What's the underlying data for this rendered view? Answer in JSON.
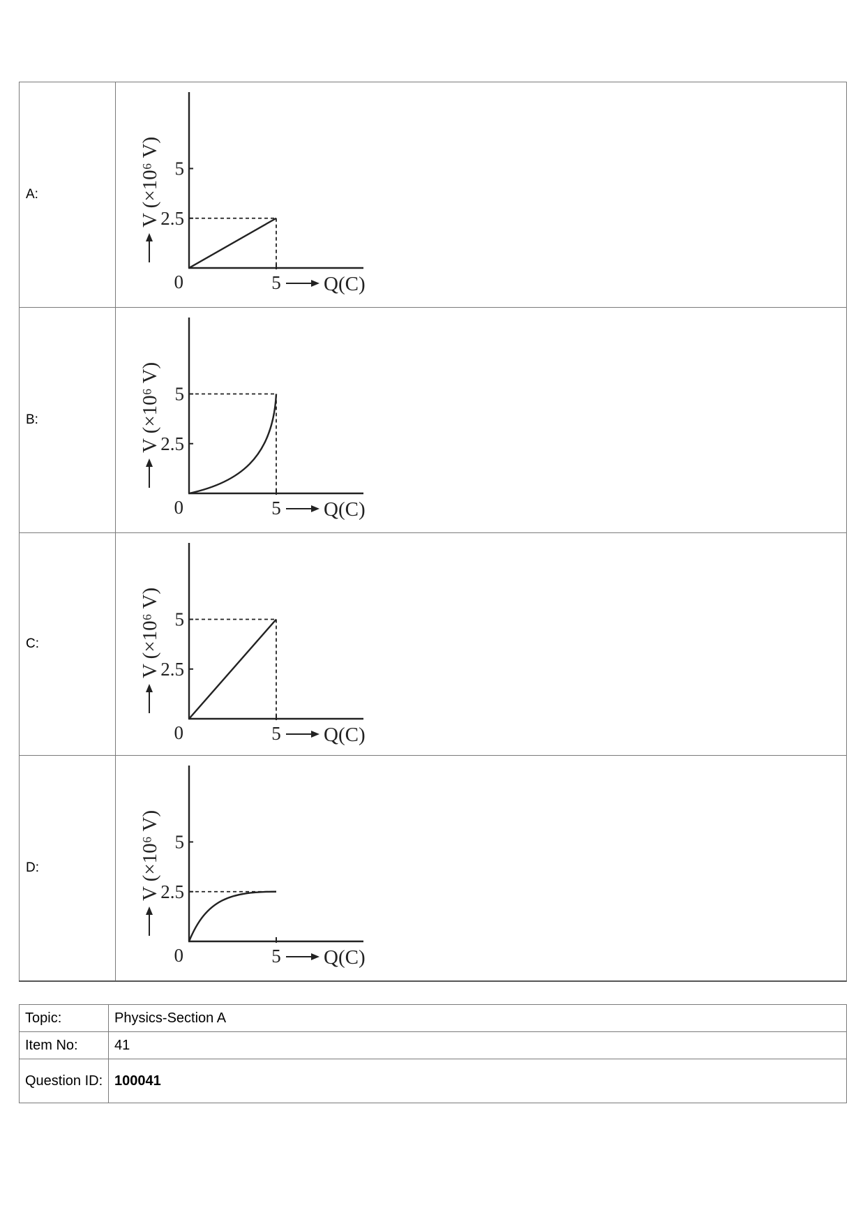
{
  "options": [
    {
      "label": "A:",
      "chart_data": {
        "type": "line",
        "curve": "linear",
        "xlabel": "Q(C)",
        "ylabel": "V (×10⁶ V)",
        "x_ticks": [
          "0",
          "5"
        ],
        "y_ticks": [
          "2.5",
          "5"
        ],
        "points": [
          [
            0,
            0
          ],
          [
            5,
            2.5
          ]
        ],
        "guide_lines": [
          {
            "x": 5,
            "y": 2.5
          }
        ]
      }
    },
    {
      "label": "B:",
      "chart_data": {
        "type": "line",
        "curve": "concave-up",
        "xlabel": "Q(C)",
        "ylabel": "V (×10⁶ V)",
        "x_ticks": [
          "0",
          "5"
        ],
        "y_ticks": [
          "2.5",
          "5"
        ],
        "points": [
          [
            0,
            0
          ],
          [
            5,
            5
          ]
        ],
        "guide_lines": [
          {
            "x": 5,
            "y": 5
          }
        ]
      }
    },
    {
      "label": "C:",
      "chart_data": {
        "type": "line",
        "curve": "linear",
        "xlabel": "Q(C)",
        "ylabel": "V (×10⁶ V)",
        "x_ticks": [
          "0",
          "5"
        ],
        "y_ticks": [
          "2.5",
          "5"
        ],
        "points": [
          [
            0,
            0
          ],
          [
            5,
            5
          ]
        ],
        "guide_lines": [
          {
            "x": 5,
            "y": 5
          }
        ]
      }
    },
    {
      "label": "D:",
      "chart_data": {
        "type": "line",
        "curve": "concave-down-saturating",
        "xlabel": "Q(C)",
        "ylabel": "V (×10⁶ V)",
        "x_ticks": [
          "0",
          "5"
        ],
        "y_ticks": [
          "2.5",
          "5"
        ],
        "points": [
          [
            0,
            0
          ],
          [
            5,
            2.5
          ]
        ],
        "guide_lines": [
          {
            "y": 2.5
          }
        ]
      }
    }
  ],
  "meta": {
    "topic_label": "Topic:",
    "topic_value": "Physics-Section A",
    "item_label": "Item No:",
    "item_value": "41",
    "qid_label": "Question ID:",
    "qid_value": "100041"
  }
}
